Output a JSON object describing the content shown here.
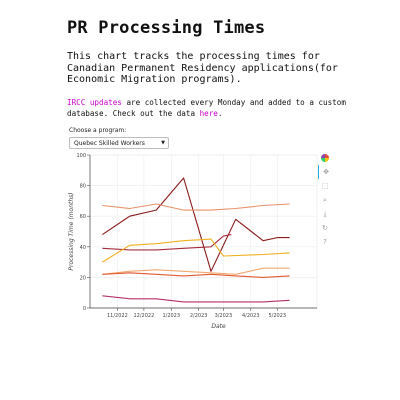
{
  "page": {
    "title": "PR Processing Times",
    "intro": "This chart tracks the processing times for Canadian Permanent Residency applications(for Economic Migration programs).",
    "note_link1": "IRCC updates",
    "note_mid": " are collected every Monday and added to a custom database. Check out the data ",
    "note_link2": "here",
    "note_end": "."
  },
  "program_select": {
    "label": "Choose a program:",
    "value": "Quebec Skilled Workers"
  },
  "toolbar": {
    "tools": [
      "bokeh-logo-icon",
      "pan-icon",
      "box-zoom-icon",
      "wheel-zoom-icon",
      "save-icon",
      "reset-icon",
      "help-icon"
    ]
  },
  "chart_data": {
    "type": "line",
    "xlabel": "Date",
    "ylabel": "Processing Time (months)",
    "ylim": [
      0,
      100
    ],
    "yticks": [
      0,
      20,
      40,
      60,
      80,
      100
    ],
    "xlim": [
      "2022-10-01",
      "2023-06-15"
    ],
    "xticks": [
      {
        "date": "2022-11-01",
        "label": "11/2022"
      },
      {
        "date": "2022-12-01",
        "label": "12/2022"
      },
      {
        "date": "2023-01-01",
        "label": "1/2023"
      },
      {
        "date": "2023-02-01",
        "label": "2/2023"
      },
      {
        "date": "2023-03-01",
        "label": "3/2023"
      },
      {
        "date": "2023-04-01",
        "label": "4/2023"
      },
      {
        "date": "2023-05-01",
        "label": "5/2023"
      }
    ],
    "grid": true,
    "series": [
      {
        "color": "#8b1a1a",
        "points": [
          [
            "2022-10-15",
            48
          ],
          [
            "2022-11-15",
            60
          ],
          [
            "2022-12-15",
            64
          ],
          [
            "2023-01-15",
            85
          ],
          [
            "2023-02-15",
            24
          ],
          [
            "2023-03-15",
            58
          ],
          [
            "2023-04-15",
            44
          ],
          [
            "2023-05-01",
            46
          ],
          [
            "2023-05-15",
            46
          ]
        ]
      },
      {
        "color": "#a62c3c",
        "points": [
          [
            "2022-10-15",
            39
          ],
          [
            "2022-11-15",
            38
          ],
          [
            "2022-12-15",
            38
          ],
          [
            "2023-01-15",
            39
          ],
          [
            "2023-02-15",
            40
          ],
          [
            "2023-03-01",
            47
          ],
          [
            "2023-03-10",
            48
          ]
        ]
      },
      {
        "color": "#e8916a",
        "points": [
          [
            "2022-10-15",
            67
          ],
          [
            "2022-11-15",
            65
          ],
          [
            "2022-12-15",
            68
          ],
          [
            "2023-01-15",
            64
          ],
          [
            "2023-02-15",
            64
          ],
          [
            "2023-03-15",
            65
          ],
          [
            "2023-04-15",
            67
          ],
          [
            "2023-05-15",
            68
          ]
        ]
      },
      {
        "color": "#f0b020",
        "points": [
          [
            "2022-10-15",
            30
          ],
          [
            "2022-11-15",
            41
          ],
          [
            "2022-12-15",
            42
          ],
          [
            "2023-01-15",
            44
          ],
          [
            "2023-02-15",
            45
          ],
          [
            "2023-03-01",
            34
          ],
          [
            "2023-04-15",
            35
          ],
          [
            "2023-05-15",
            36
          ]
        ]
      },
      {
        "color": "#f0a870",
        "points": [
          [
            "2022-10-15",
            22
          ],
          [
            "2022-11-15",
            24
          ],
          [
            "2022-12-15",
            25
          ],
          [
            "2023-01-15",
            24
          ],
          [
            "2023-02-15",
            23
          ],
          [
            "2023-03-15",
            22
          ],
          [
            "2023-04-15",
            26
          ],
          [
            "2023-05-15",
            26
          ]
        ]
      },
      {
        "color": "#e15a30",
        "points": [
          [
            "2022-10-15",
            22
          ],
          [
            "2022-11-15",
            23
          ],
          [
            "2022-12-15",
            22
          ],
          [
            "2023-01-15",
            21
          ],
          [
            "2023-02-15",
            22
          ],
          [
            "2023-03-15",
            21
          ],
          [
            "2023-04-15",
            20
          ],
          [
            "2023-05-15",
            21
          ]
        ]
      },
      {
        "color": "#b5306a",
        "points": [
          [
            "2022-10-15",
            8
          ],
          [
            "2022-11-15",
            6
          ],
          [
            "2022-12-15",
            6
          ],
          [
            "2023-01-15",
            4
          ],
          [
            "2023-02-15",
            4
          ],
          [
            "2023-03-15",
            4
          ],
          [
            "2023-04-15",
            4
          ],
          [
            "2023-05-15",
            5
          ]
        ]
      }
    ]
  }
}
